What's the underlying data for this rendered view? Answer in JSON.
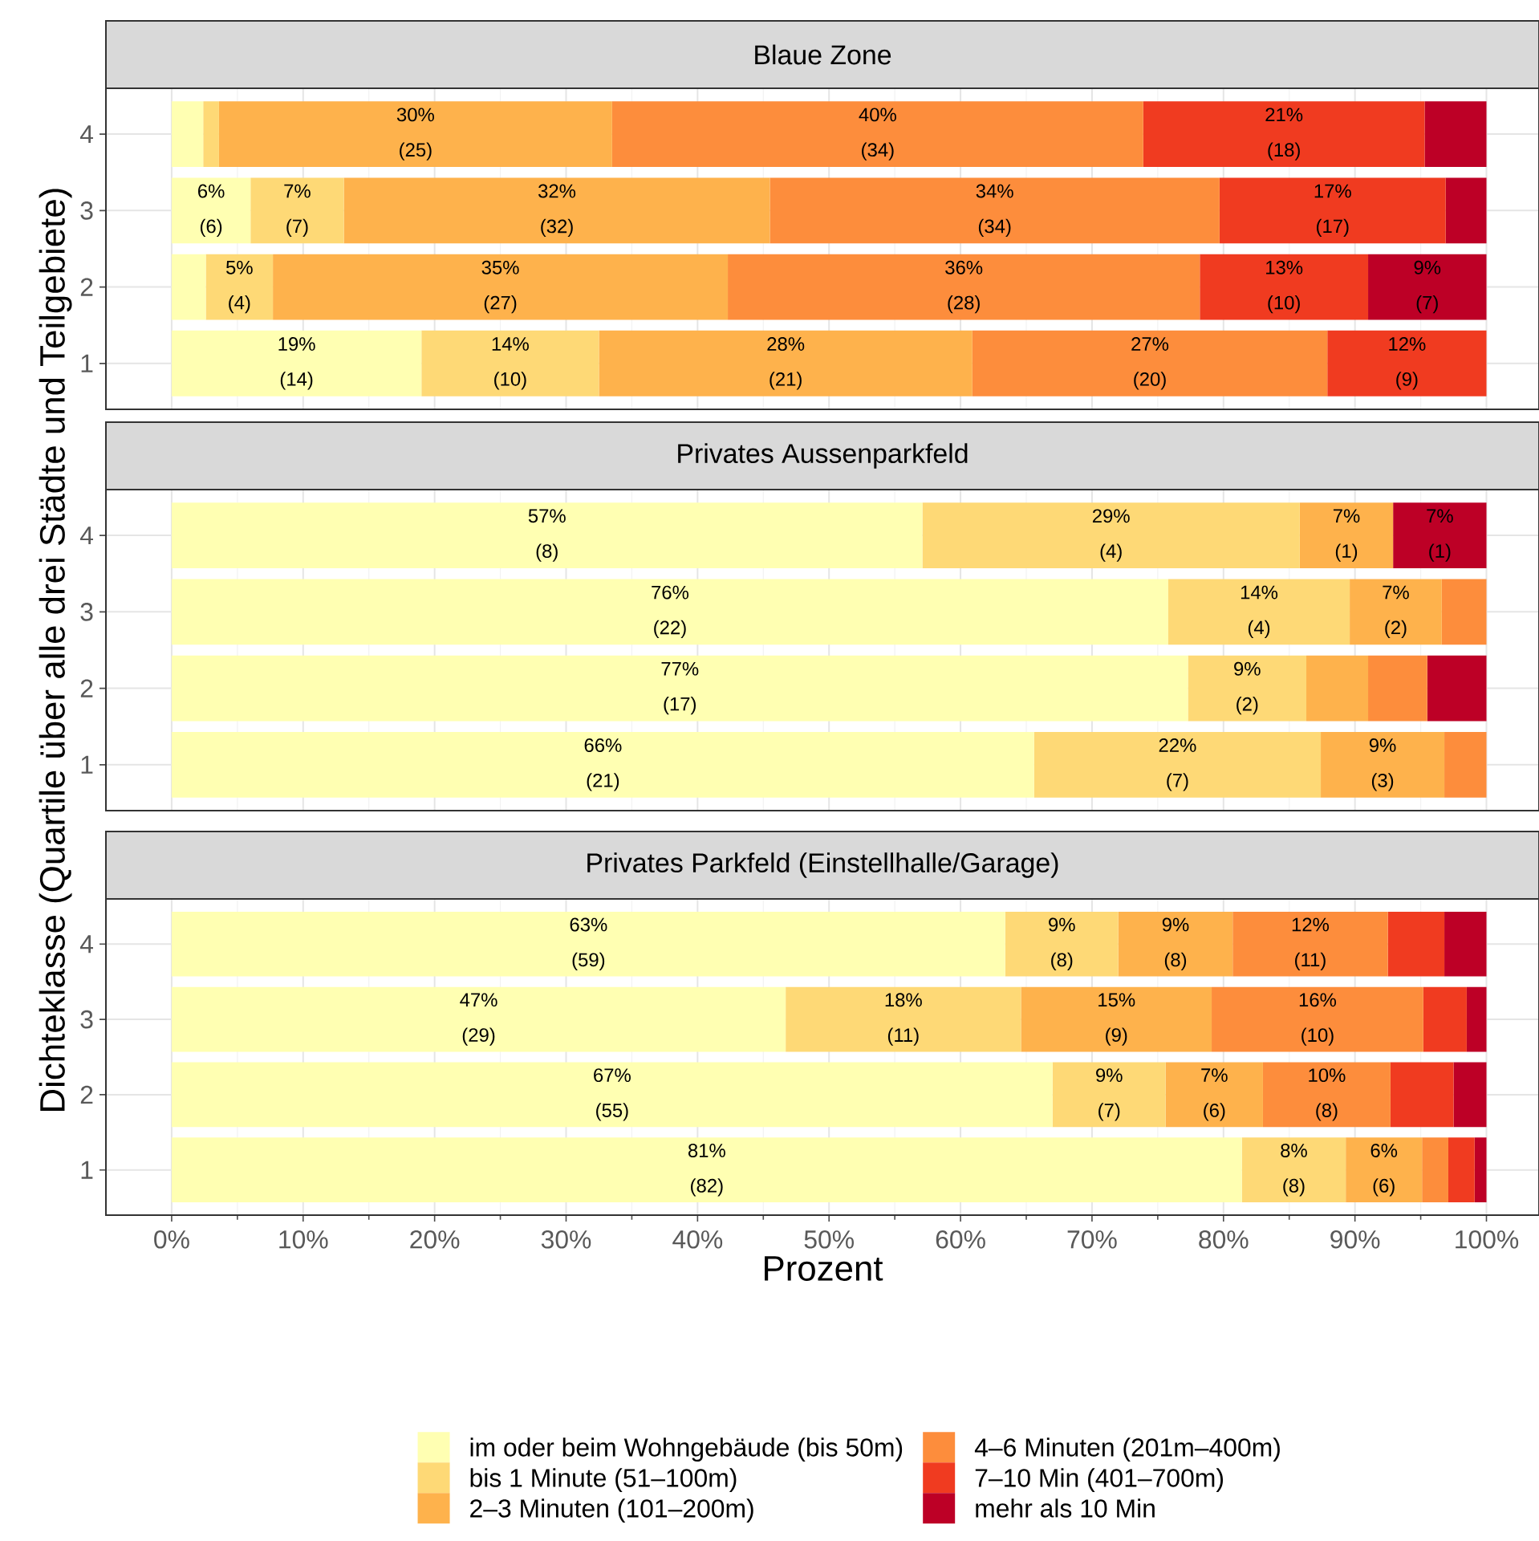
{
  "chart_data": [
    {
      "type": "bar",
      "orientation": "horizontal",
      "stacked": true,
      "title": "Blaue Zone",
      "categories": [
        "4",
        "3",
        "2",
        "1"
      ],
      "series": [
        {
          "color": "#ffffb2",
          "values": [
            2.4,
            6.0,
            2.6,
            19.0
          ],
          "value_labels": [
            null,
            "6% (6)",
            null,
            "19% (14)"
          ]
        },
        {
          "color": "#fed976",
          "values": [
            1.2,
            7.1,
            5.1,
            13.5
          ],
          "value_labels": [
            null,
            "7% (7)",
            "5% (4)",
            "14% (10)"
          ]
        },
        {
          "color": "#feb24c",
          "values": [
            29.9,
            32.4,
            34.6,
            28.4
          ],
          "value_labels": [
            "30% (25)",
            "32% (32)",
            "35% (27)",
            "28% (21)"
          ]
        },
        {
          "color": "#fd8d3c",
          "values": [
            40.4,
            34.2,
            35.9,
            27.0
          ],
          "value_labels": [
            "40% (34)",
            "34% (34)",
            "36% (28)",
            "27% (20)"
          ]
        },
        {
          "color": "#f03b20",
          "values": [
            21.4,
            17.2,
            12.8,
            12.1
          ],
          "value_labels": [
            "21% (18)",
            "17% (17)",
            "13% (10)",
            "12% (9)"
          ]
        },
        {
          "color": "#bd0026",
          "values": [
            4.7,
            3.1,
            9.0,
            0
          ],
          "value_labels": [
            null,
            null,
            "9% (7)",
            null
          ]
        }
      ],
      "xlim": [
        -5,
        104
      ],
      "xticks": [
        {
          "value": 0,
          "label": null
        },
        {
          "value": 10,
          "label": null
        },
        {
          "value": 20,
          "label": null
        },
        {
          "value": 30,
          "label": null
        },
        {
          "value": 40,
          "label": null
        },
        {
          "value": 50,
          "label": null
        },
        {
          "value": 60,
          "label": null
        },
        {
          "value": 70,
          "label": null
        },
        {
          "value": 80,
          "label": null
        },
        {
          "value": 90,
          "label": null
        },
        {
          "value": 100,
          "label": null
        }
      ],
      "grid": true,
      "tick_labels": "y"
    },
    {
      "type": "bar",
      "orientation": "horizontal",
      "stacked": true,
      "title": "Privates Aussenparkfeld",
      "categories": [
        "4",
        "3",
        "2",
        "1"
      ],
      "ylabel": "Dichteklasse (Quartile über alle drei Städte und Teilgebiete)",
      "series": [
        {
          "color": "#ffffb2",
          "values": [
            57.1,
            75.8,
            77.3,
            65.6
          ],
          "value_labels": [
            "57% (8)",
            "76% (22)",
            "77% (17)",
            "66% (21)"
          ]
        },
        {
          "color": "#fed976",
          "values": [
            28.7,
            13.8,
            9.0,
            21.8
          ],
          "value_labels": [
            "29% (4)",
            "14% (4)",
            "9% (2)",
            "22% (7)"
          ]
        },
        {
          "color": "#feb24c",
          "values": [
            7.1,
            7.0,
            4.7,
            9.4
          ],
          "value_labels": [
            "7% (1)",
            "7% (2)",
            null,
            "9% (3)"
          ]
        },
        {
          "color": "#fd8d3c",
          "values": [
            0,
            3.4,
            4.5,
            3.2
          ]
        },
        {
          "color": "#f03b20",
          "values": [
            0,
            0,
            0,
            0
          ]
        },
        {
          "color": "#bd0026",
          "values": [
            7.1,
            0,
            4.5,
            0
          ],
          "value_labels": [
            "7% (1)",
            null,
            null,
            null
          ]
        }
      ],
      "xlim": [
        -5,
        104
      ],
      "xticks": [
        {
          "value": 0,
          "label": null
        },
        {
          "value": 10,
          "label": null
        },
        {
          "value": 20,
          "label": null
        },
        {
          "value": 30,
          "label": null
        },
        {
          "value": 40,
          "label": null
        },
        {
          "value": 50,
          "label": null
        },
        {
          "value": 60,
          "label": null
        },
        {
          "value": 70,
          "label": null
        },
        {
          "value": 80,
          "label": null
        },
        {
          "value": 90,
          "label": null
        },
        {
          "value": 100,
          "label": null
        }
      ],
      "grid": true,
      "tick_labels": "y"
    },
    {
      "type": "bar",
      "orientation": "horizontal",
      "stacked": true,
      "title": "Privates Parkfeld (Einstellhalle/Garage)",
      "categories": [
        "4",
        "3",
        "2",
        "1"
      ],
      "xlabel": "Prozent",
      "series": [
        {
          "name": "im oder beim Wohngebäude (bis 50m)",
          "color": "#ffffb2",
          "values": [
            63.4,
            46.7,
            67.0,
            81.4
          ],
          "value_labels": [
            "63% (59)",
            "47% (29)",
            "67% (55)",
            "81% (82)"
          ]
        },
        {
          "name": "bis 1 Minute (51–100m)",
          "color": "#fed976",
          "values": [
            8.6,
            17.9,
            8.6,
            7.9
          ],
          "value_labels": [
            "9% (8)",
            "18% (11)",
            "9% (7)",
            "8% (8)"
          ]
        },
        {
          "name": "2–3 Minuten (101–200m)",
          "color": "#feb24c",
          "values": [
            8.7,
            14.5,
            7.4,
            5.8
          ],
          "value_labels": [
            "9% (8)",
            "15% (9)",
            "7% (6)",
            "6% (6)"
          ]
        },
        {
          "name": "4–6 Minuten (201m–400m)",
          "color": "#fd8d3c",
          "values": [
            11.8,
            16.1,
            9.7,
            2.0
          ],
          "value_labels": [
            "12% (11)",
            "16% (10)",
            "10% (8)",
            null
          ]
        },
        {
          "name": "7–10 Min (401–700m)",
          "color": "#f03b20",
          "values": [
            4.3,
            3.3,
            4.8,
            2.0
          ]
        },
        {
          "name": "mehr als 10 Min",
          "color": "#bd0026",
          "values": [
            3.2,
            1.5,
            2.5,
            0.9
          ]
        }
      ],
      "xlim": [
        -5,
        104
      ],
      "xticks": [
        {
          "value": 0,
          "label": "0%"
        },
        {
          "value": 10,
          "label": "10%"
        },
        {
          "value": 20,
          "label": "20%"
        },
        {
          "value": 30,
          "label": "30%"
        },
        {
          "value": 40,
          "label": "40%"
        },
        {
          "value": 50,
          "label": "50%"
        },
        {
          "value": 60,
          "label": "60%"
        },
        {
          "value": 70,
          "label": "70%"
        },
        {
          "value": 80,
          "label": "80%"
        },
        {
          "value": 90,
          "label": "90%"
        },
        {
          "value": 100,
          "label": "100%"
        }
      ],
      "grid": true,
      "legend": "bottom"
    }
  ]
}
